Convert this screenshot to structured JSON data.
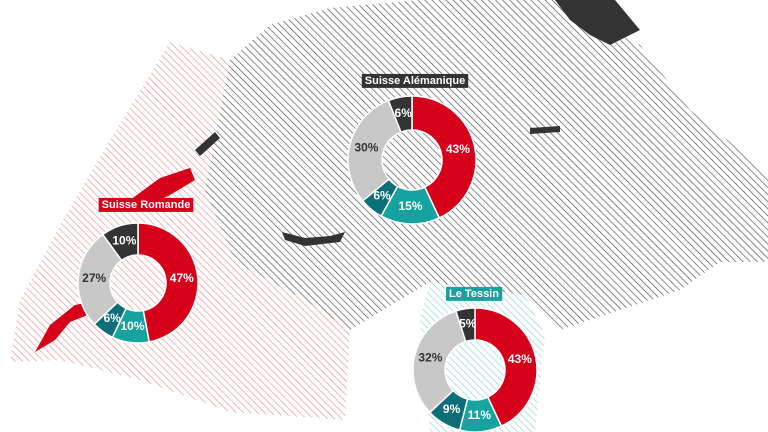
{
  "chart_data": [
    {
      "type": "pie",
      "title": "Suisse Alémanique",
      "title_color": "#333333",
      "values": [
        43,
        15,
        6,
        30,
        6
      ],
      "value_labels": [
        "43%",
        "15%",
        "6%",
        "30%",
        "6%"
      ],
      "colors": [
        "#d7001b",
        "#16a3a0",
        "#0b6e78",
        "#c8c8c8",
        "#333333"
      ]
    },
    {
      "type": "pie",
      "title": "Suisse Romande",
      "title_color": "#d7001b",
      "values": [
        47,
        10,
        6,
        27,
        10
      ],
      "value_labels": [
        "47%",
        "10%",
        "6%",
        "27%",
        "10%"
      ],
      "colors": [
        "#d7001b",
        "#16a3a0",
        "#0b6e78",
        "#c8c8c8",
        "#333333"
      ]
    },
    {
      "type": "pie",
      "title": "Le Tessin",
      "title_color": "#16a3a0",
      "values": [
        43,
        11,
        9,
        32,
        5
      ],
      "value_labels": [
        "43%",
        "11%",
        "9%",
        "32%",
        "5%"
      ],
      "colors": [
        "#d7001b",
        "#16a3a0",
        "#0b6e78",
        "#c8c8c8",
        "#333333"
      ]
    }
  ]
}
